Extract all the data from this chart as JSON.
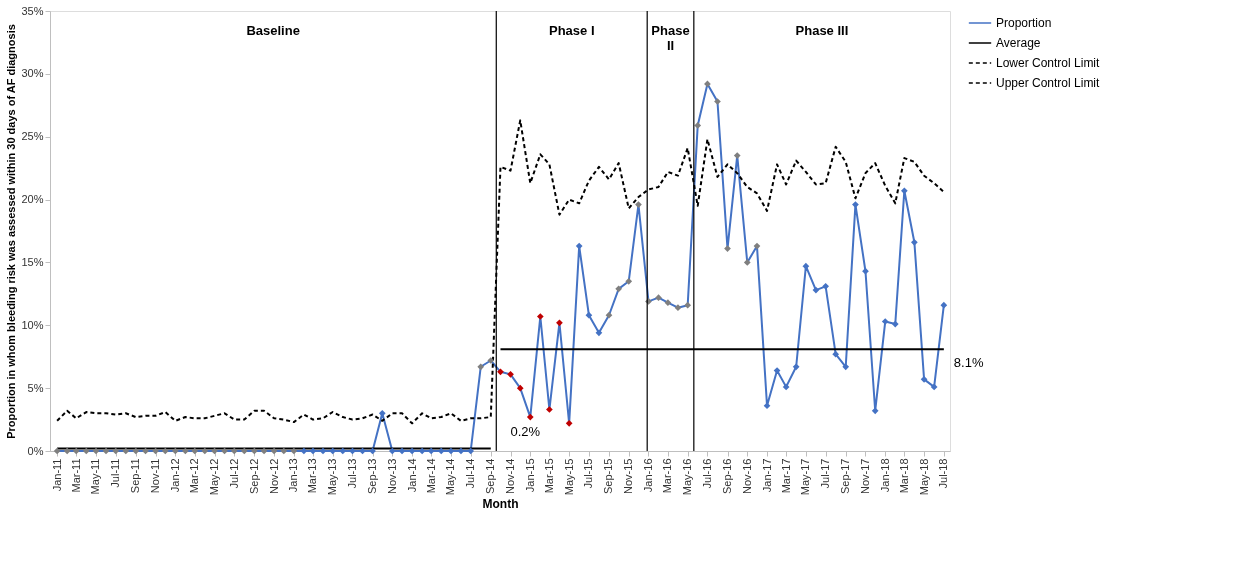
{
  "chart_data": {
    "type": "line",
    "xlabel": "Month",
    "ylabel": "Proportion in whom bleeding risk was assessed within 30 days of AF diagnosis",
    "x": [
      "2011-01",
      "2011-02",
      "2011-03",
      "2011-04",
      "2011-05",
      "2011-06",
      "2011-07",
      "2011-08",
      "2011-09",
      "2011-10",
      "2011-11",
      "2011-12",
      "2012-01",
      "2012-02",
      "2012-03",
      "2012-04",
      "2012-05",
      "2012-06",
      "2012-07",
      "2012-08",
      "2012-09",
      "2012-10",
      "2012-11",
      "2012-12",
      "2013-01",
      "2013-02",
      "2013-03",
      "2013-04",
      "2013-05",
      "2013-06",
      "2013-07",
      "2013-08",
      "2013-09",
      "2013-10",
      "2013-11",
      "2013-12",
      "2014-01",
      "2014-02",
      "2014-03",
      "2014-04",
      "2014-05",
      "2014-06",
      "2014-07",
      "2014-08",
      "2014-09",
      "2014-10",
      "2014-11",
      "2014-12",
      "2015-01",
      "2015-02",
      "2015-03",
      "2015-04",
      "2015-05",
      "2015-06",
      "2015-07",
      "2015-08",
      "2015-09",
      "2015-10",
      "2015-11",
      "2015-12",
      "2016-01",
      "2016-02",
      "2016-03",
      "2016-04",
      "2016-05",
      "2016-06",
      "2016-07",
      "2016-08",
      "2016-09",
      "2016-10",
      "2016-11",
      "2016-12",
      "2017-01",
      "2017-02",
      "2017-03",
      "2017-04",
      "2017-05",
      "2017-06",
      "2017-07",
      "2017-08",
      "2017-09",
      "2017-10",
      "2017-11",
      "2017-12",
      "2018-01",
      "2018-02",
      "2018-03",
      "2018-04",
      "2018-05",
      "2018-06",
      "2018-07"
    ],
    "series": [
      {
        "name": "Proportion",
        "color": "#4472c4",
        "marker": "diamond",
        "line_style": "solid",
        "values": [
          0,
          0,
          0,
          0,
          0,
          0,
          0,
          0,
          0,
          0,
          0,
          0,
          0,
          0,
          0,
          0,
          0,
          0,
          0,
          0,
          0,
          0,
          0,
          0,
          0,
          0,
          0,
          0,
          0,
          0,
          0,
          0,
          0,
          3.0,
          0,
          0,
          0,
          0,
          0,
          0,
          0,
          0,
          0,
          6.7,
          7.2,
          6.3,
          6.1,
          5.0,
          2.7,
          10.7,
          3.3,
          10.2,
          2.2,
          16.3,
          10.8,
          9.4,
          10.8,
          12.9,
          13.5,
          19.6,
          11.9,
          12.2,
          11.8,
          11.4,
          11.6,
          25.9,
          29.2,
          27.8,
          16.1,
          23.5,
          15.0,
          16.3,
          3.6,
          6.4,
          5.1,
          6.7,
          14.7,
          12.8,
          13.1,
          7.7,
          6.7,
          19.6,
          14.3,
          3.2,
          10.3,
          10.1,
          20.7,
          16.6,
          5.7,
          5.1,
          11.6
        ],
        "colors": [
          "#7f7f7f",
          "#7f7f7f",
          "#7f7f7f",
          "#7f7f7f",
          "#7f7f7f",
          "#7f7f7f",
          "#7f7f7f",
          "#7f7f7f",
          "#7f7f7f",
          "#7f7f7f",
          "#7f7f7f",
          "#7f7f7f",
          "#7f7f7f",
          "#7f7f7f",
          "#7f7f7f",
          "#7f7f7f",
          "#7f7f7f",
          "#7f7f7f",
          "#7f7f7f",
          "#7f7f7f",
          "#7f7f7f",
          "#7f7f7f",
          "#7f7f7f",
          "#7f7f7f",
          "#7f7f7f",
          "#4472c4",
          "#4472c4",
          "#4472c4",
          "#4472c4",
          "#4472c4",
          "#4472c4",
          "#4472c4",
          "#4472c4",
          "#4472c4",
          "#4472c4",
          "#4472c4",
          "#4472c4",
          "#4472c4",
          "#4472c4",
          "#4472c4",
          "#4472c4",
          "#4472c4",
          "#4472c4",
          "#7f7f7f",
          "#7f7f7f",
          "#c00000",
          "#c00000",
          "#c00000",
          "#c00000",
          "#c00000",
          "#c00000",
          "#c00000",
          "#c00000",
          "#4472c4",
          "#4472c4",
          "#4472c4",
          "#7f7f7f",
          "#7f7f7f",
          "#7f7f7f",
          "#7f7f7f",
          "#7f7f7f",
          "#7f7f7f",
          "#7f7f7f",
          "#7f7f7f",
          "#7f7f7f",
          "#7f7f7f",
          "#7f7f7f",
          "#7f7f7f",
          "#7f7f7f",
          "#7f7f7f",
          "#7f7f7f",
          "#7f7f7f",
          "#4472c4",
          "#4472c4",
          "#4472c4",
          "#4472c4",
          "#4472c4",
          "#4472c4",
          "#4472c4",
          "#4472c4",
          "#4472c4",
          "#4472c4",
          "#4472c4",
          "#4472c4",
          "#4472c4",
          "#4472c4",
          "#4472c4",
          "#4472c4",
          "#4472c4",
          "#4472c4",
          "#4472c4"
        ]
      },
      {
        "name": "Average",
        "color": "#000000",
        "marker": "none",
        "line_style": "solid",
        "values": [
          0.2,
          0.2,
          0.2,
          0.2,
          0.2,
          0.2,
          0.2,
          0.2,
          0.2,
          0.2,
          0.2,
          0.2,
          0.2,
          0.2,
          0.2,
          0.2,
          0.2,
          0.2,
          0.2,
          0.2,
          0.2,
          0.2,
          0.2,
          0.2,
          0.2,
          0.2,
          0.2,
          0.2,
          0.2,
          0.2,
          0.2,
          0.2,
          0.2,
          0.2,
          0.2,
          0.2,
          0.2,
          0.2,
          0.2,
          0.2,
          0.2,
          0.2,
          0.2,
          0.2,
          0.2,
          8.1,
          8.1,
          8.1,
          8.1,
          8.1,
          8.1,
          8.1,
          8.1,
          8.1,
          8.1,
          8.1,
          8.1,
          8.1,
          8.1,
          8.1,
          8.1,
          8.1,
          8.1,
          8.1,
          8.1,
          8.1,
          8.1,
          8.1,
          8.1,
          8.1,
          8.1,
          8.1,
          8.1,
          8.1,
          8.1,
          8.1,
          8.1,
          8.1,
          8.1,
          8.1,
          8.1,
          8.1,
          8.1,
          8.1,
          8.1,
          8.1,
          8.1,
          8.1,
          8.1,
          8.1,
          8.1
        ]
      },
      {
        "name": "Lower Control Limit",
        "color": "#000000",
        "marker": "none",
        "line_style": "dashed",
        "values": [
          null,
          null,
          null,
          null,
          null,
          null,
          null,
          null,
          null,
          null,
          null,
          null,
          null,
          null,
          null,
          null,
          null,
          null,
          null,
          null,
          null,
          null,
          null,
          null,
          null,
          null,
          null,
          null,
          null,
          null,
          null,
          null,
          null,
          null,
          null,
          null,
          null,
          null,
          null,
          null,
          null,
          null,
          null,
          null,
          null,
          null,
          null,
          null,
          null,
          null,
          null,
          null,
          null,
          null,
          null,
          null,
          null,
          null,
          null,
          null,
          null,
          null,
          null,
          null,
          null,
          null,
          null,
          null,
          null,
          null,
          null,
          null,
          null,
          null,
          null,
          null,
          null,
          null,
          null,
          null,
          null,
          null,
          null,
          null,
          null,
          null,
          null,
          null,
          null,
          null,
          null
        ]
      },
      {
        "name": "Upper Control Limit",
        "color": "#000000",
        "marker": "none",
        "line_style": "dashed",
        "values": [
          2.4,
          3.2,
          2.6,
          3.1,
          3.0,
          3.0,
          2.9,
          3.0,
          2.7,
          2.8,
          2.8,
          3.1,
          2.4,
          2.7,
          2.6,
          2.6,
          2.8,
          3.0,
          2.5,
          2.5,
          3.2,
          3.2,
          2.6,
          2.5,
          2.3,
          2.9,
          2.5,
          2.6,
          3.1,
          2.7,
          2.5,
          2.6,
          2.9,
          2.4,
          3.0,
          3.0,
          2.2,
          3.0,
          2.6,
          2.7,
          3.0,
          2.4,
          2.6,
          2.6,
          2.7,
          22.6,
          22.3,
          26.3,
          21.3,
          23.6,
          22.8,
          18.8,
          20.0,
          19.7,
          21.5,
          22.6,
          21.6,
          22.9,
          19.3,
          20.2,
          20.8,
          21.0,
          22.2,
          21.9,
          24.1,
          19.5,
          24.8,
          21.8,
          22.8,
          22.1,
          21.0,
          20.5,
          19.1,
          22.8,
          21.2,
          23.1,
          22.2,
          21.2,
          21.3,
          24.2,
          23.0,
          20.1,
          22.1,
          22.9,
          21.1,
          19.7,
          23.3,
          23.0,
          21.9,
          21.3,
          20.6
        ]
      }
    ],
    "xlim": [
      "2010-12-10",
      "2018-07-20"
    ],
    "xticks": [
      {
        "value": "2011-01",
        "label": "Jan-11"
      },
      {
        "value": "2011-03",
        "label": "Mar-11"
      },
      {
        "value": "2011-05",
        "label": "May-11"
      },
      {
        "value": "2011-07",
        "label": "Jul-11"
      },
      {
        "value": "2011-09",
        "label": "Sep-11"
      },
      {
        "value": "2011-11",
        "label": "Nov-11"
      },
      {
        "value": "2012-01",
        "label": "Jan-12"
      },
      {
        "value": "2012-03",
        "label": "Mar-12"
      },
      {
        "value": "2012-05",
        "label": "May-12"
      },
      {
        "value": "2012-07",
        "label": "Jul-12"
      },
      {
        "value": "2012-09",
        "label": "Sep-12"
      },
      {
        "value": "2012-11",
        "label": "Nov-12"
      },
      {
        "value": "2013-01",
        "label": "Jan-13"
      },
      {
        "value": "2013-03",
        "label": "Mar-13"
      },
      {
        "value": "2013-05",
        "label": "May-13"
      },
      {
        "value": "2013-07",
        "label": "Jul-13"
      },
      {
        "value": "2013-09",
        "label": "Sep-13"
      },
      {
        "value": "2013-11",
        "label": "Nov-13"
      },
      {
        "value": "2014-01",
        "label": "Jan-14"
      },
      {
        "value": "2014-03",
        "label": "Mar-14"
      },
      {
        "value": "2014-05",
        "label": "May-14"
      },
      {
        "value": "2014-07",
        "label": "Jul-14"
      },
      {
        "value": "2014-09",
        "label": "Sep-14"
      },
      {
        "value": "2014-11",
        "label": "Nov-14"
      },
      {
        "value": "2015-01",
        "label": "Jan-15"
      },
      {
        "value": "2015-03",
        "label": "Mar-15"
      },
      {
        "value": "2015-05",
        "label": "May-15"
      },
      {
        "value": "2015-07",
        "label": "Jul-15"
      },
      {
        "value": "2015-09",
        "label": "Sep-15"
      },
      {
        "value": "2015-11",
        "label": "Nov-15"
      },
      {
        "value": "2016-01",
        "label": "Jan-16"
      },
      {
        "value": "2016-03",
        "label": "Mar-16"
      },
      {
        "value": "2016-05",
        "label": "May-16"
      },
      {
        "value": "2016-07",
        "label": "Jul-16"
      },
      {
        "value": "2016-09",
        "label": "Sep-16"
      },
      {
        "value": "2016-11",
        "label": "Nov-16"
      },
      {
        "value": "2017-01",
        "label": "Jan-17"
      },
      {
        "value": "2017-03",
        "label": "Mar-17"
      },
      {
        "value": "2017-05",
        "label": "May-17"
      },
      {
        "value": "2017-07",
        "label": "Jul-17"
      },
      {
        "value": "2017-09",
        "label": "Sep-17"
      },
      {
        "value": "2017-11",
        "label": "Nov-17"
      },
      {
        "value": "2018-01",
        "label": "Jan-18"
      },
      {
        "value": "2018-03",
        "label": "Mar-18"
      },
      {
        "value": "2018-05",
        "label": "May-18"
      },
      {
        "value": "2018-07",
        "label": "Jul-18"
      }
    ],
    "ylim": [
      0,
      35
    ],
    "yticks": [
      {
        "value": 0,
        "label": "0%"
      },
      {
        "value": 5,
        "label": "5%"
      },
      {
        "value": 10,
        "label": "10%"
      },
      {
        "value": 15,
        "label": "15%"
      },
      {
        "value": 20,
        "label": "20%"
      },
      {
        "value": 25,
        "label": "25%"
      },
      {
        "value": 30,
        "label": "30%"
      },
      {
        "value": 35,
        "label": "35%"
      }
    ],
    "ref_lines": [
      {
        "axis": "x",
        "value": "2014-09-18",
        "color": "#000000"
      },
      {
        "axis": "x",
        "value": "2015-12-28",
        "color": "#000000"
      },
      {
        "axis": "x",
        "value": "2016-05-20",
        "color": "#000000"
      }
    ],
    "annotations": [
      "Baseline",
      "Phase I",
      "Phase II",
      "Phase III",
      {
        "text": "0.2%",
        "x": "2014-10-01",
        "y": 0.2
      },
      {
        "text": "8.1%",
        "x": "2018-07-01",
        "y": 8.1
      }
    ],
    "grid": false,
    "legend": "right"
  }
}
